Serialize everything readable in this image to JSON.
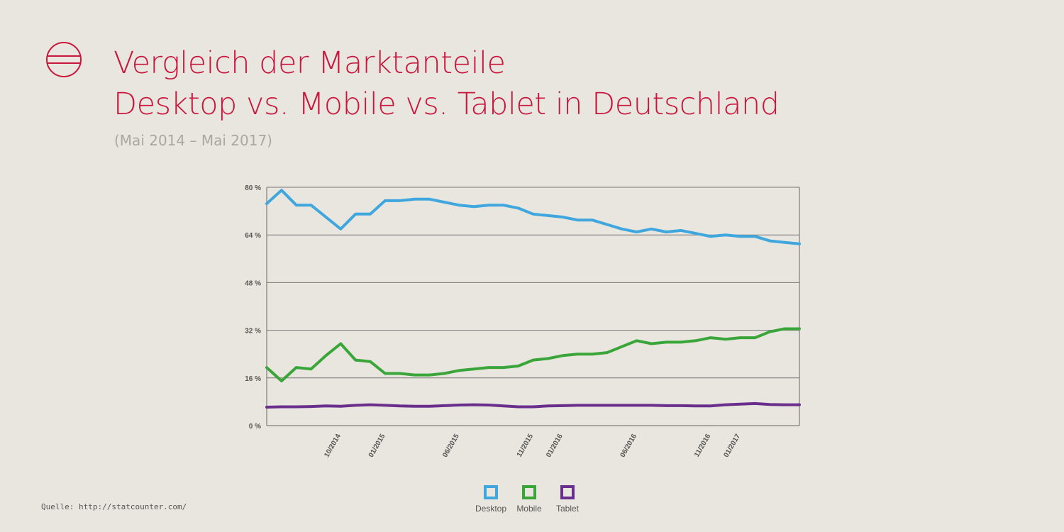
{
  "title_line1": "Vergleich der Marktanteile",
  "title_line2": "Desktop vs. Mobile vs. Tablet in Deutschland",
  "subtitle": "(Mai 2014 – Mai 2017)",
  "source": "Quelle: http://statcounter.com/",
  "colors": {
    "accent": "#c8163c",
    "desktop": "#3fa7dd",
    "mobile": "#3aa63a",
    "tablet": "#6a2f8c"
  },
  "chart_data": {
    "type": "line",
    "y_ticks": [
      "0 %",
      "16 %",
      "32 %",
      "48 %",
      "64 %",
      "80 %"
    ],
    "ylim": [
      0,
      80
    ],
    "x_tick_labels": [
      {
        "label": "10/2014",
        "index": 5
      },
      {
        "label": "01/2015",
        "index": 8
      },
      {
        "label": "06/2015",
        "index": 13
      },
      {
        "label": "11/2015",
        "index": 18
      },
      {
        "label": "01/2016",
        "index": 20
      },
      {
        "label": "06/2016",
        "index": 25
      },
      {
        "label": "11/2016",
        "index": 30
      },
      {
        "label": "01/2017",
        "index": 32
      }
    ],
    "point_count": 37,
    "series": [
      {
        "name": "Desktop",
        "color": "#3fa7dd",
        "values": [
          74.5,
          79,
          74,
          74,
          70,
          66,
          71,
          71,
          75.5,
          75.5,
          76,
          76,
          75,
          74,
          73.5,
          74,
          74,
          73,
          71,
          70.5,
          70,
          69,
          69,
          67.5,
          66,
          65,
          66,
          65,
          65.5,
          64.5,
          63.5,
          64,
          63.5,
          63.5,
          62,
          61.5,
          61
        ]
      },
      {
        "name": "Mobile",
        "color": "#3aa63a",
        "values": [
          19.5,
          15,
          19.5,
          19,
          23.5,
          27.5,
          22,
          21.5,
          17.5,
          17.5,
          17,
          17,
          17.5,
          18.5,
          19,
          19.5,
          19.5,
          20,
          22,
          22.5,
          23.5,
          24,
          24,
          24.5,
          26.5,
          28.5,
          27.5,
          28,
          28,
          28.5,
          29.5,
          29,
          29.5,
          29.5,
          31.5,
          32.5,
          32.5
        ]
      },
      {
        "name": "Tablet",
        "color": "#6a2f8c",
        "values": [
          6.2,
          6.3,
          6.3,
          6.4,
          6.6,
          6.5,
          6.8,
          7,
          6.8,
          6.6,
          6.5,
          6.5,
          6.7,
          6.9,
          7,
          6.9,
          6.6,
          6.3,
          6.3,
          6.6,
          6.7,
          6.8,
          6.8,
          6.8,
          6.8,
          6.8,
          6.8,
          6.7,
          6.7,
          6.6,
          6.6,
          7,
          7.2,
          7.4,
          7.1,
          7,
          7
        ]
      }
    ]
  }
}
